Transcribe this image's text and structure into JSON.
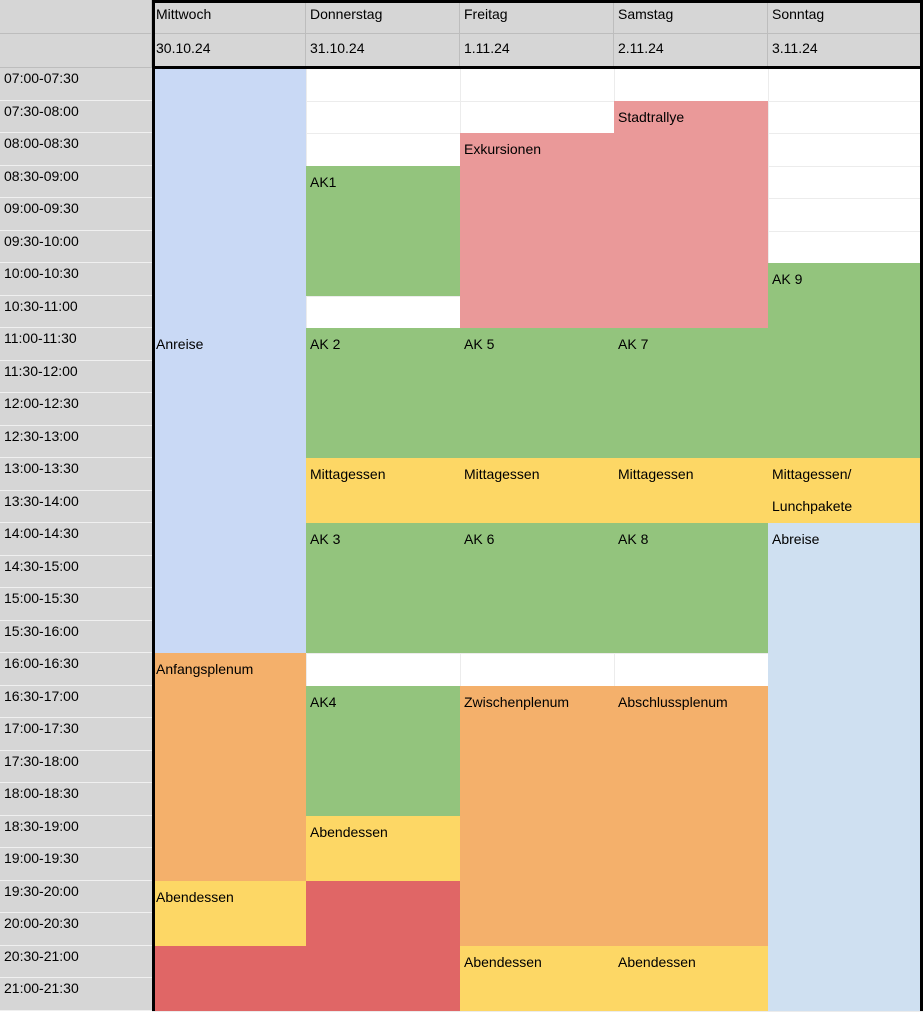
{
  "colors": {
    "header_bg": "#d6d6d6",
    "arrival": "#c9d9f5",
    "departure": "#cfe0f1",
    "workshop": "#93c47d",
    "meal": "#fdd765",
    "excursion": "#ea9999",
    "plenary": "#f4b06b",
    "evening": "#e06666"
  },
  "days": [
    {
      "name": "Mittwoch",
      "date": "30.10.24"
    },
    {
      "name": "Donnerstag",
      "date": "31.10.24"
    },
    {
      "name": "Freitag",
      "date": "1.11.24"
    },
    {
      "name": "Samstag",
      "date": "2.11.24"
    },
    {
      "name": "Sonntag",
      "date": "3.11.24"
    }
  ],
  "times": [
    "07:00-07:30",
    "07:30-08:00",
    "08:00-08:30",
    "08:30-09:00",
    "09:00-09:30",
    "09:30-10:00",
    "10:00-10:30",
    "10:30-11:00",
    "11:00-11:30",
    "11:30-12:00",
    "12:00-12:30",
    "12:30-13:00",
    "13:00-13:30",
    "13:30-14:00",
    "14:00-14:30",
    "14:30-15:00",
    "15:00-15:30",
    "15:30-16:00",
    "16:00-16:30",
    "16:30-17:00",
    "17:00-17:30",
    "17:30-18:00",
    "18:00-18:30",
    "18:30-19:00",
    "19:00-19:30",
    "19:30-20:00",
    "20:00-20:30",
    "20:30-21:00",
    "21:00-21:30"
  ],
  "events": [
    {
      "day": 0,
      "start": 0,
      "end": 18,
      "label": "Anreise",
      "color": "arrival",
      "label_slot": 8
    },
    {
      "day": 0,
      "start": 18,
      "end": 25,
      "label": "Anfangsplenum",
      "color": "plenary"
    },
    {
      "day": 0,
      "start": 25,
      "end": 27,
      "label": "Abendessen",
      "color": "meal"
    },
    {
      "day": 0,
      "start": 27,
      "end": 29,
      "label": "",
      "color": "evening"
    },
    {
      "day": 1,
      "start": 3,
      "end": 7,
      "label": "AK1",
      "color": "workshop"
    },
    {
      "day": 1,
      "start": 8,
      "end": 12,
      "label": "AK 2",
      "color": "workshop"
    },
    {
      "day": 1,
      "start": 12,
      "end": 14,
      "label": "Mittagessen",
      "color": "meal"
    },
    {
      "day": 1,
      "start": 14,
      "end": 18,
      "label": "AK 3",
      "color": "workshop"
    },
    {
      "day": 1,
      "start": 19,
      "end": 23,
      "label": "AK4",
      "color": "workshop"
    },
    {
      "day": 1,
      "start": 23,
      "end": 25,
      "label": "Abendessen",
      "color": "meal"
    },
    {
      "day": 1,
      "start": 25,
      "end": 29,
      "label": "",
      "color": "evening"
    },
    {
      "day": 2,
      "start": 2,
      "end": 8,
      "label": "Exkursionen",
      "color": "excursion"
    },
    {
      "day": 2,
      "start": 8,
      "end": 12,
      "label": "AK 5",
      "color": "workshop"
    },
    {
      "day": 2,
      "start": 12,
      "end": 14,
      "label": "Mittagessen",
      "color": "meal"
    },
    {
      "day": 2,
      "start": 14,
      "end": 18,
      "label": "AK 6",
      "color": "workshop"
    },
    {
      "day": 2,
      "start": 19,
      "end": 27,
      "label": "Zwischenplenum",
      "color": "plenary"
    },
    {
      "day": 2,
      "start": 27,
      "end": 29,
      "label": "Abendessen",
      "color": "meal"
    },
    {
      "day": 3,
      "start": 1,
      "end": 8,
      "label": "Stadtrallye",
      "color": "excursion"
    },
    {
      "day": 3,
      "start": 8,
      "end": 12,
      "label": "AK 7",
      "color": "workshop"
    },
    {
      "day": 3,
      "start": 12,
      "end": 14,
      "label": "Mittagessen",
      "color": "meal"
    },
    {
      "day": 3,
      "start": 14,
      "end": 18,
      "label": "AK 8",
      "color": "workshop"
    },
    {
      "day": 3,
      "start": 19,
      "end": 27,
      "label": "Abschlussplenum",
      "color": "plenary"
    },
    {
      "day": 3,
      "start": 27,
      "end": 29,
      "label": "Abendessen",
      "color": "meal"
    },
    {
      "day": 4,
      "start": 6,
      "end": 12,
      "label": "AK 9",
      "color": "workshop"
    },
    {
      "day": 4,
      "start": 12,
      "end": 14,
      "label": "Mittagessen/",
      "label2": "Lunchpakete",
      "color": "meal"
    },
    {
      "day": 4,
      "start": 14,
      "end": 29,
      "label": "Abreise",
      "color": "departure"
    }
  ]
}
